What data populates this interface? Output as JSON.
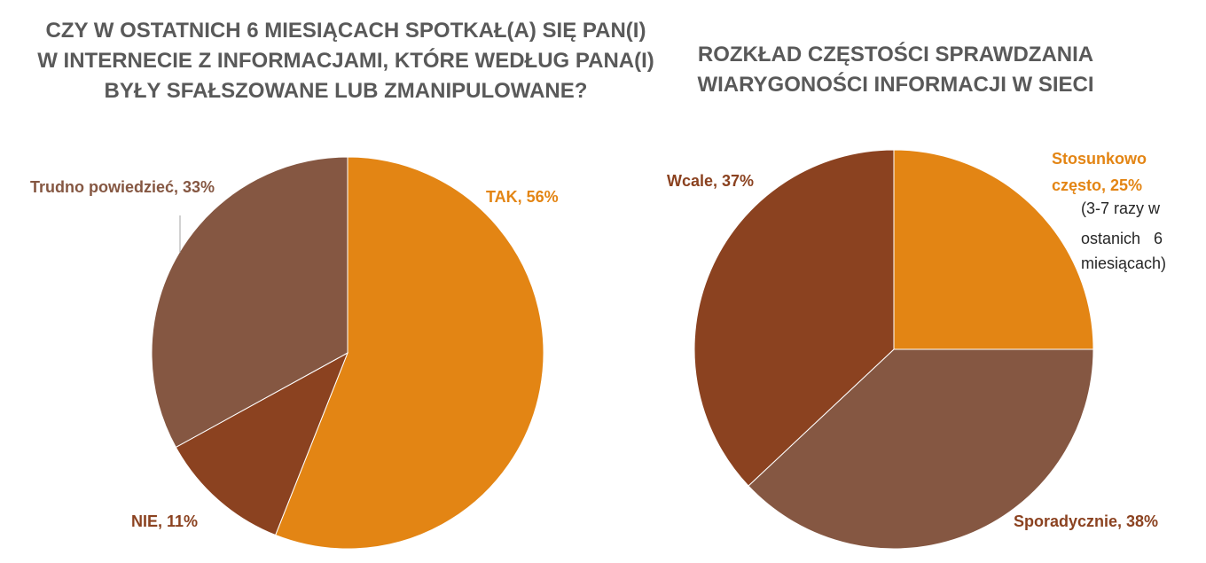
{
  "chart_data": [
    {
      "type": "pie",
      "title": "CZY W OSTATNICH 6 MIESIĄCACH SPOTKAŁ(A) SIĘ PAN(I) W INTERNECIE Z INFORMACJAMI, KTÓRE WEDŁUG PANA(I) BYŁY SFAŁSZOWANE LUB ZMANIPULOWANE?",
      "slices": [
        {
          "label": "TAK",
          "value": 56,
          "color": "#e38514",
          "data_label": "TAK, 56%"
        },
        {
          "label": "NIE",
          "value": 11,
          "color": "#8b4220",
          "data_label": "NIE, 11%"
        },
        {
          "label": "Trudno powiedzieć",
          "value": 33,
          "color": "#855742",
          "data_label": "Trudno powiedzieć, 33%"
        }
      ],
      "legend": "none"
    },
    {
      "type": "pie",
      "title": "ROZKŁAD CZĘSTOŚCI SPRAWDZANIA WIARYGONOŚCI INFORMACJI W SIECI",
      "slices": [
        {
          "label": "Stosunkowo często",
          "value": 25,
          "color": "#e38514",
          "data_label": "Stosunkowo często, 25%"
        },
        {
          "label": "Sporadycznie",
          "value": 38,
          "color": "#855742",
          "data_label": "Sporadycznie, 38%"
        },
        {
          "label": "Wcale",
          "value": 37,
          "color": "#8b4220",
          "data_label": "Wcale, 37%"
        }
      ],
      "annotation": "(3-7 razy w ostanich 6 miesiącach)",
      "legend": "none"
    }
  ],
  "labels": {
    "left": {
      "tak": "TAK, 56%",
      "nie": "NIE, 11%",
      "trudno": "Trudno powiedzieć, 33%"
    },
    "right": {
      "stos_line1": "Stosunkowo",
      "stos_line2": "często, 25%",
      "wcale": "Wcale, 37%",
      "spor": "Sporadycznie, 38%"
    },
    "note_lines": [
      "(3-7 razy w",
      "ostanich   6",
      "miesiącach)"
    ]
  }
}
